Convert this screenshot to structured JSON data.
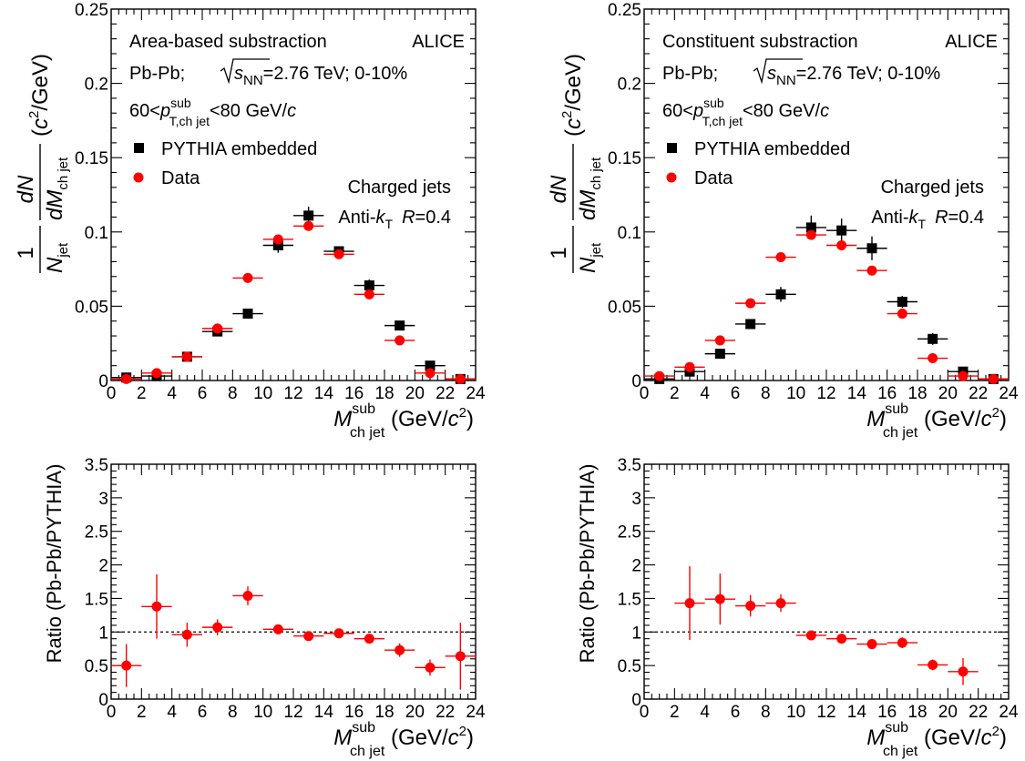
{
  "colors": {
    "mc": "#000000",
    "data": "#ff0000",
    "ref": "#000000"
  },
  "chart_data": [
    {
      "type": "scatter",
      "title": "Area-based substraction",
      "experiment": "ALICE",
      "system_text": "Pb-Pb; ",
      "sqrt_s": "s",
      "sqrt_sub": "NN",
      "energy_text": "=2.76 TeV; 0-10%",
      "pt_pre": "60<",
      "pt_p": "p",
      "pt_sup": "sub",
      "pt_sub": "T,ch jet",
      "pt_post": "<80 GeV/",
      "pt_c": "c",
      "legend": [
        {
          "name": "PYTHIA embedded",
          "marker": "square"
        },
        {
          "name": "Data",
          "marker": "circle"
        }
      ],
      "legend_position": "top-left",
      "jets_line1": "Charged jets",
      "jets_line2_a": "Anti-",
      "jets_line2_k": "k",
      "jets_line2_T": "T",
      "jets_line2_R": "R",
      "jets_line2_val": "=0.4",
      "ylabel": {
        "num_one": "1",
        "den_N": "N",
        "den_jet": "jet",
        "d_N": "dN",
        "d_M": "dM",
        "d_sub": "ch jet",
        "unit_open": "(",
        "unit_c": "c",
        "unit_exp": "2",
        "unit_rest": "/GeV)"
      },
      "xlabel": {
        "M": "M",
        "sup": "sub",
        "sub": "ch jet",
        "unit_open": " (GeV/",
        "unit_c": "c",
        "unit_exp": "2",
        "unit_close": ")"
      },
      "xlim": [
        0,
        24
      ],
      "ylim": [
        0,
        0.25
      ],
      "x_ticks": [
        "0",
        "2",
        "4",
        "6",
        "8",
        "10",
        "12",
        "14",
        "16",
        "18",
        "20",
        "22",
        "24"
      ],
      "y_ticks": [
        "0",
        "0.05",
        "0.1",
        "0.15",
        "0.2",
        "0.25"
      ],
      "x_bin_halfwidth": 1,
      "series": [
        {
          "name": "PYTHIA embedded",
          "marker": "square",
          "x": [
            1,
            3,
            5,
            7,
            9,
            11,
            13,
            15,
            17,
            19,
            21,
            23
          ],
          "y": [
            0.002,
            0.003,
            0.016,
            0.033,
            0.045,
            0.091,
            0.111,
            0.087,
            0.064,
            0.037,
            0.01,
            0.001
          ],
          "yerr": [
            0.001,
            0.002,
            0.002,
            0.003,
            0.002,
            0.005,
            0.006,
            0.003,
            0.004,
            0.003,
            0.002,
            0.001
          ]
        },
        {
          "name": "Data",
          "marker": "circle",
          "x": [
            1,
            3,
            5,
            7,
            9,
            11,
            13,
            15,
            17,
            19,
            21,
            23
          ],
          "y": [
            0.001,
            0.005,
            0.016,
            0.035,
            0.069,
            0.095,
            0.104,
            0.085,
            0.058,
            0.027,
            0.005,
            0.001
          ],
          "yerr": [
            0.001,
            0.001,
            0.001,
            0.001,
            0.001,
            0.001,
            0.001,
            0.001,
            0.001,
            0.001,
            0.001,
            0.001
          ]
        }
      ]
    },
    {
      "type": "scatter",
      "title": "Constituent substraction",
      "experiment": "ALICE",
      "system_text": "Pb-Pb; ",
      "sqrt_s": "s",
      "sqrt_sub": "NN",
      "energy_text": "=2.76 TeV; 0-10%",
      "pt_pre": "60<",
      "pt_p": "p",
      "pt_sup": "sub",
      "pt_sub": "T,ch jet",
      "pt_post": "<80 GeV/",
      "pt_c": "c",
      "legend": [
        {
          "name": "PYTHIA embedded",
          "marker": "square"
        },
        {
          "name": "Data",
          "marker": "circle"
        }
      ],
      "legend_position": "top-left",
      "jets_line1": "Charged jets",
      "jets_line2_a": "Anti-",
      "jets_line2_k": "k",
      "jets_line2_T": "T",
      "jets_line2_R": "R",
      "jets_line2_val": "=0.4",
      "ylabel": {
        "num_one": "1",
        "den_N": "N",
        "den_jet": "jet",
        "d_N": "dN",
        "d_M": "dM",
        "d_sub": "ch jet",
        "unit_open": "(",
        "unit_c": "c",
        "unit_exp": "2",
        "unit_rest": "/GeV)"
      },
      "xlabel": {
        "M": "M",
        "sup": "sub",
        "sub": "ch jet",
        "unit_open": " (GeV/",
        "unit_c": "c",
        "unit_exp": "2",
        "unit_close": ")"
      },
      "xlim": [
        0,
        24
      ],
      "ylim": [
        0,
        0.25
      ],
      "x_ticks": [
        "0",
        "2",
        "4",
        "6",
        "8",
        "10",
        "12",
        "14",
        "16",
        "18",
        "20",
        "22",
        "24"
      ],
      "y_ticks": [
        "0",
        "0.05",
        "0.1",
        "0.15",
        "0.2",
        "0.25"
      ],
      "x_bin_halfwidth": 1,
      "series": [
        {
          "name": "PYTHIA embedded",
          "marker": "square",
          "x": [
            1,
            3,
            5,
            7,
            9,
            11,
            13,
            15,
            17,
            19,
            21,
            23
          ],
          "y": [
            0.001,
            0.006,
            0.018,
            0.038,
            0.058,
            0.103,
            0.101,
            0.089,
            0.053,
            0.028,
            0.006,
            0.001
          ],
          "yerr": [
            0.001,
            0.003,
            0.003,
            0.003,
            0.005,
            0.008,
            0.008,
            0.008,
            0.004,
            0.004,
            0.002,
            0.001
          ]
        },
        {
          "name": "Data",
          "marker": "circle",
          "x": [
            1,
            3,
            5,
            7,
            9,
            11,
            13,
            15,
            17,
            19,
            21,
            23
          ],
          "y": [
            0.003,
            0.009,
            0.027,
            0.052,
            0.083,
            0.098,
            0.091,
            0.074,
            0.045,
            0.015,
            0.003,
            0.001
          ],
          "yerr": [
            0.001,
            0.001,
            0.001,
            0.001,
            0.001,
            0.001,
            0.001,
            0.001,
            0.001,
            0.001,
            0.001,
            0.001
          ]
        }
      ]
    },
    {
      "type": "scatter",
      "ylabel_text": "Ratio (Pb-Pb/PYTHIA)",
      "xlabel": {
        "M": "M",
        "sup": "sub",
        "sub": "ch jet",
        "unit_open": " (GeV/",
        "unit_c": "c",
        "unit_exp": "2",
        "unit_close": ")"
      },
      "xlim": [
        0,
        24
      ],
      "ylim": [
        0,
        3.5
      ],
      "x_ticks": [
        "0",
        "2",
        "4",
        "6",
        "8",
        "10",
        "12",
        "14",
        "16",
        "18",
        "20",
        "22",
        "24"
      ],
      "y_ticks": [
        "0",
        "0.5",
        "1",
        "1.5",
        "2",
        "2.5",
        "3",
        "3.5"
      ],
      "reference_line": 1,
      "x_bin_halfwidth": 1,
      "series": [
        {
          "name": "Ratio",
          "marker": "circle",
          "x": [
            1,
            3,
            5,
            7,
            9,
            11,
            13,
            15,
            17,
            19,
            21,
            23
          ],
          "y": [
            0.5,
            1.38,
            0.96,
            1.07,
            1.54,
            1.04,
            0.94,
            0.98,
            0.9,
            0.73,
            0.47,
            0.64
          ],
          "yerr": [
            0.32,
            0.48,
            0.18,
            0.12,
            0.14,
            0.06,
            0.05,
            0.05,
            0.07,
            0.1,
            0.12,
            0.5
          ]
        }
      ]
    },
    {
      "type": "scatter",
      "ylabel_text": "Ratio (Pb-Pb/PYTHIA)",
      "xlabel": {
        "M": "M",
        "sup": "sub",
        "sub": "ch jet",
        "unit_open": " (GeV/",
        "unit_c": "c",
        "unit_exp": "2",
        "unit_close": ")"
      },
      "xlim": [
        0,
        24
      ],
      "ylim": [
        0,
        3.5
      ],
      "x_ticks": [
        "0",
        "2",
        "4",
        "6",
        "8",
        "10",
        "12",
        "14",
        "16",
        "18",
        "20",
        "22",
        "24"
      ],
      "y_ticks": [
        "0",
        "0.5",
        "1",
        "1.5",
        "2",
        "2.5",
        "3",
        "3.5"
      ],
      "reference_line": 1,
      "x_bin_halfwidth": 1,
      "series": [
        {
          "name": "Ratio",
          "marker": "circle",
          "x": [
            3,
            5,
            7,
            9,
            11,
            13,
            15,
            17,
            19,
            21
          ],
          "y": [
            1.43,
            1.49,
            1.39,
            1.43,
            0.95,
            0.9,
            0.82,
            0.84,
            0.51,
            0.41
          ],
          "yerr": [
            0.55,
            0.38,
            0.16,
            0.13,
            0.06,
            0.05,
            0.05,
            0.08,
            0.08,
            0.2
          ]
        }
      ]
    }
  ]
}
